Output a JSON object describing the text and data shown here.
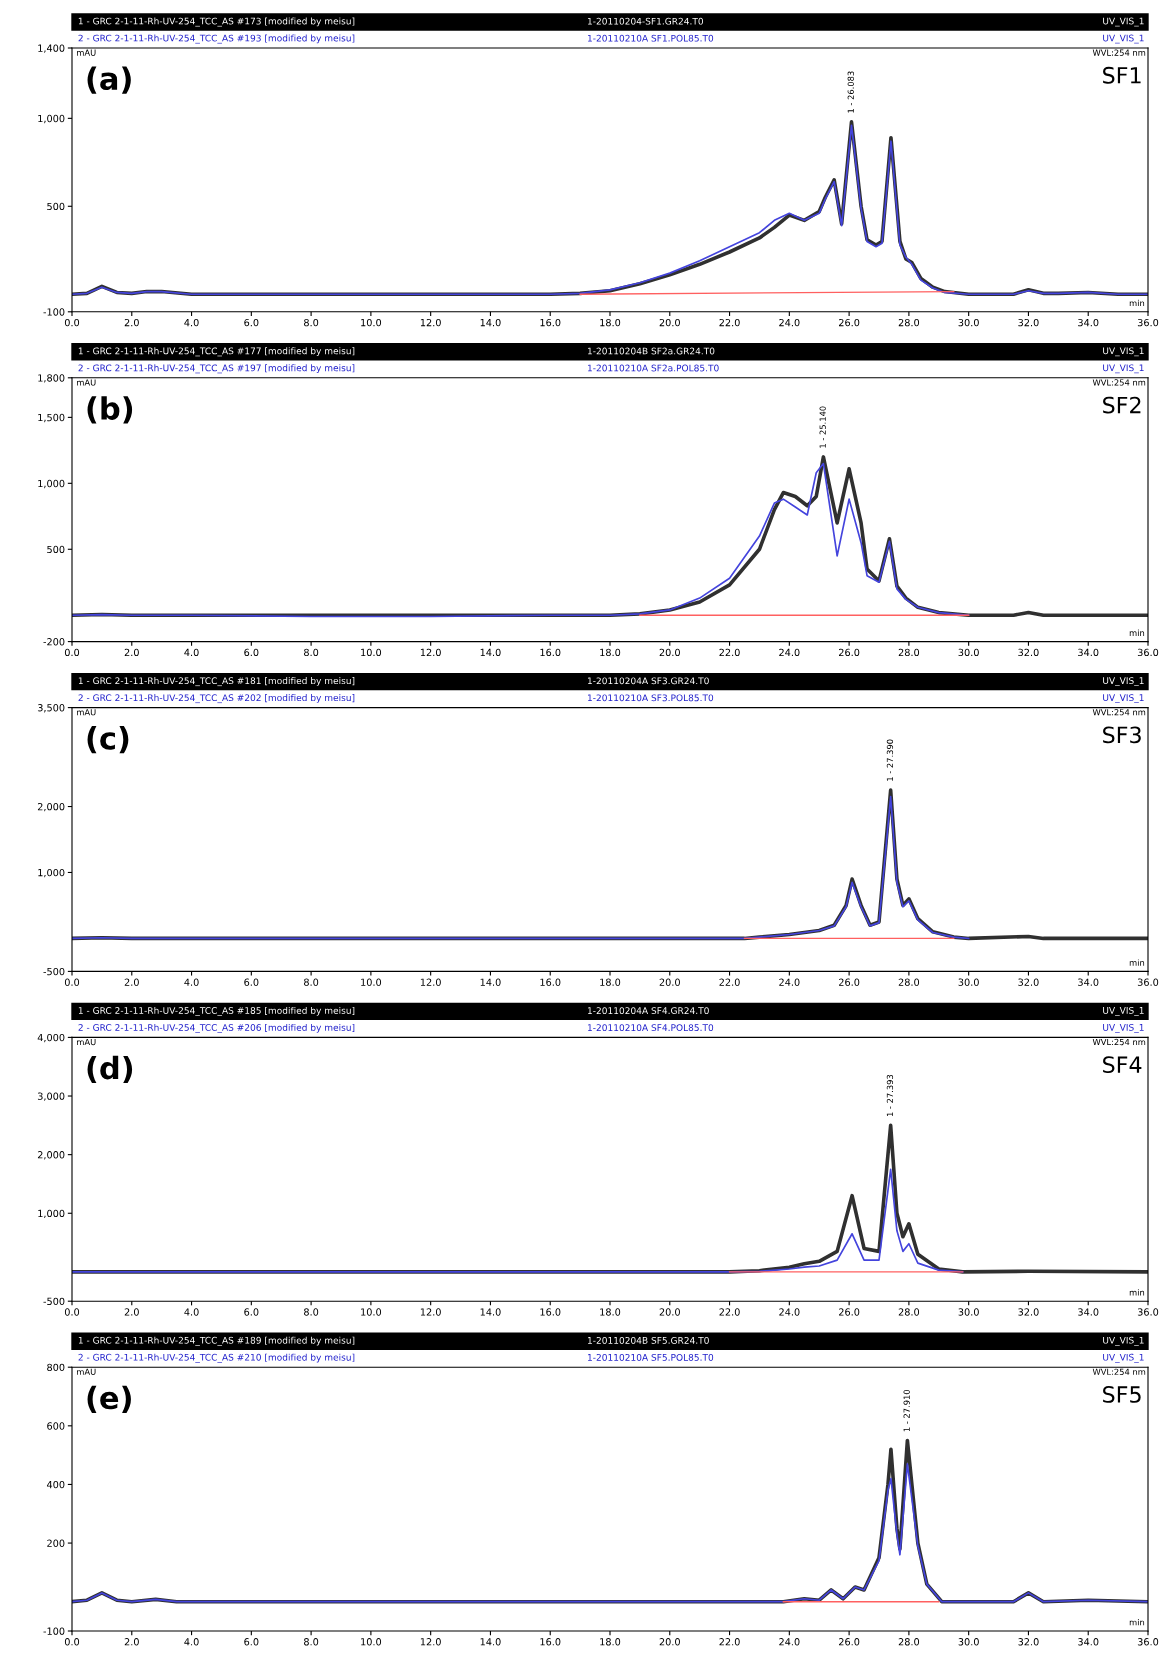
{
  "chart_data": [
    {
      "type": "line",
      "title": "(a)",
      "xlabel": "min",
      "ylabel": "mAU",
      "xlim": [
        0,
        36
      ],
      "ylim": [
        -100,
        1400
      ],
      "xticks": [
        {
          "value": 0,
          "label": "0.0"
        },
        {
          "value": 2,
          "label": "2.0"
        },
        {
          "value": 4,
          "label": "4.0"
        },
        {
          "value": 6,
          "label": "6.0"
        },
        {
          "value": 8,
          "label": "8.0"
        },
        {
          "value": 10,
          "label": "10.0"
        },
        {
          "value": 12,
          "label": "12.0"
        },
        {
          "value": 14,
          "label": "14.0"
        },
        {
          "value": 16,
          "label": "16.0"
        },
        {
          "value": 18,
          "label": "18.0"
        },
        {
          "value": 20,
          "label": "20.0"
        },
        {
          "value": 22,
          "label": "22.0"
        },
        {
          "value": 24,
          "label": "24.0"
        },
        {
          "value": 26,
          "label": "26.0"
        },
        {
          "value": 28,
          "label": "28.0"
        },
        {
          "value": 30,
          "label": "30.0"
        },
        {
          "value": 32,
          "label": "32.0"
        },
        {
          "value": 34,
          "label": "34.0"
        },
        {
          "value": 36,
          "label": "36.0"
        }
      ],
      "yticks": [
        -100,
        500,
        {
          "value": 1000,
          "label": "1,000"
        },
        {
          "value": 1400,
          "label": "1,400"
        }
      ],
      "annotations": [
        "1 - GRC 2-1-11-Rh-UV-254_TCC_AS #173 [modified by meisu]",
        "1-20110204-SF1.GR24.T0",
        "UV_VIS_1",
        "2 - GRC 2-1-11-Rh-UV-254_TCC_AS #193 [modified by meisu]",
        "1-20110210A SF1.POL85.T0",
        "UV_VIS_1",
        "SF1",
        "WVL:254 nm",
        {
          "text": "1 - 26.083",
          "x": 26.08,
          "y": 980
        }
      ],
      "series": [
        {
          "color": "#303030",
          "x": [
            0,
            0.5,
            1,
            1.5,
            2,
            2.5,
            3,
            4,
            8,
            12,
            16,
            17,
            18,
            19,
            20,
            21,
            22,
            23,
            23.5,
            24,
            24.5,
            25,
            25.2,
            25.5,
            25.75,
            26.08,
            26.4,
            26.6,
            26.9,
            27.1,
            27.4,
            27.7,
            27.9,
            28.1,
            28.4,
            28.8,
            29.2,
            30,
            31.5,
            32,
            32.5,
            33,
            34,
            35,
            36
          ],
          "values": [
            0,
            5,
            45,
            10,
            5,
            15,
            15,
            0,
            0,
            0,
            0,
            5,
            20,
            60,
            110,
            170,
            240,
            320,
            380,
            450,
            420,
            470,
            550,
            650,
            400,
            980,
            500,
            310,
            280,
            300,
            890,
            300,
            200,
            180,
            90,
            40,
            15,
            0,
            0,
            25,
            5,
            5,
            10,
            0,
            0
          ]
        },
        {
          "color": "#4444dd",
          "x": [
            0,
            0.5,
            1,
            1.5,
            2,
            2.5,
            3,
            4,
            8,
            12,
            16,
            17,
            18,
            19,
            20,
            21,
            22,
            23,
            23.5,
            24,
            24.5,
            25,
            25.2,
            25.5,
            25.75,
            26.08,
            26.4,
            26.6,
            26.9,
            27.1,
            27.4,
            27.7,
            27.9,
            28.1,
            28.4,
            28.8,
            29.2,
            30,
            31.5,
            32,
            32.5,
            33,
            34,
            35,
            36
          ],
          "values": [
            0,
            5,
            40,
            10,
            5,
            15,
            15,
            0,
            0,
            0,
            0,
            5,
            25,
            65,
            120,
            190,
            270,
            350,
            420,
            460,
            420,
            460,
            540,
            640,
            390,
            960,
            490,
            300,
            270,
            290,
            870,
            280,
            210,
            170,
            80,
            35,
            10,
            0,
            0,
            20,
            5,
            5,
            10,
            0,
            0
          ]
        },
        {
          "color": "#ff6060",
          "x": [
            17,
            29.5
          ],
          "values": [
            0,
            15
          ]
        }
      ]
    },
    {
      "type": "line",
      "title": "(b)",
      "xlabel": "min",
      "ylabel": "mAU",
      "xlim": [
        0,
        36
      ],
      "ylim": [
        -200,
        1800
      ],
      "xticks": [
        {
          "value": 0,
          "label": "0.0"
        },
        {
          "value": 2,
          "label": "2.0"
        },
        {
          "value": 4,
          "label": "4.0"
        },
        {
          "value": 6,
          "label": "6.0"
        },
        {
          "value": 8,
          "label": "8.0"
        },
        {
          "value": 10,
          "label": "10.0"
        },
        {
          "value": 12,
          "label": "12.0"
        },
        {
          "value": 14,
          "label": "14.0"
        },
        {
          "value": 16,
          "label": "16.0"
        },
        {
          "value": 18,
          "label": "18.0"
        },
        {
          "value": 20,
          "label": "20.0"
        },
        {
          "value": 22,
          "label": "22.0"
        },
        {
          "value": 24,
          "label": "24.0"
        },
        {
          "value": 26,
          "label": "26.0"
        },
        {
          "value": 28,
          "label": "28.0"
        },
        {
          "value": 30,
          "label": "30.0"
        },
        {
          "value": 32,
          "label": "32.0"
        },
        {
          "value": 34,
          "label": "34.0"
        },
        {
          "value": 36,
          "label": "36.0"
        }
      ],
      "yticks": [
        -200,
        500,
        {
          "value": 1000,
          "label": "1,000"
        },
        {
          "value": 1500,
          "label": "1,500"
        },
        {
          "value": 1800,
          "label": "1,800"
        }
      ],
      "annotations": [
        "1 - GRC 2-1-11-Rh-UV-254_TCC_AS #177 [modified by meisu]",
        "1-20110204B SF2a.GR24.T0",
        "UV_VIS_1",
        "2 - GRC 2-1-11-Rh-UV-254_TCC_AS #197 [modified by meisu]",
        "1-20110210A SF2a.POL85.T0",
        "UV_VIS_1",
        "SF2",
        "WVL:254 nm",
        {
          "text": "1 - 25.140",
          "x": 25.14,
          "y": 1200
        }
      ],
      "series": [
        {
          "color": "#303030",
          "x": [
            0,
            1,
            2,
            4,
            8,
            12,
            16,
            18,
            19,
            20,
            21,
            22,
            23,
            23.5,
            23.8,
            24.2,
            24.6,
            24.9,
            25.14,
            25.6,
            26.0,
            26.4,
            26.6,
            27,
            27.35,
            27.6,
            27.9,
            28.3,
            29,
            30,
            31.5,
            32,
            32.5,
            36
          ],
          "values": [
            0,
            5,
            0,
            0,
            0,
            0,
            0,
            0,
            10,
            40,
            100,
            230,
            500,
            800,
            930,
            900,
            830,
            900,
            1200,
            700,
            1110,
            700,
            350,
            260,
            580,
            220,
            130,
            60,
            20,
            0,
            0,
            20,
            0,
            0
          ]
        },
        {
          "color": "#4444dd",
          "x": [
            0,
            1,
            2,
            4,
            8,
            12,
            16,
            18,
            19,
            20,
            21,
            22,
            23,
            23.5,
            23.8,
            24.2,
            24.6,
            24.9,
            25.14,
            25.6,
            26.0,
            26.4,
            26.6,
            27,
            27.35,
            27.6,
            27.9,
            28.3,
            29,
            30
          ],
          "values": [
            0,
            5,
            0,
            0,
            -10,
            -10,
            0,
            0,
            10,
            40,
            130,
            280,
            600,
            850,
            880,
            820,
            760,
            1080,
            1150,
            450,
            880,
            550,
            300,
            250,
            560,
            200,
            120,
            60,
            20,
            0
          ]
        },
        {
          "color": "#ff6060",
          "x": [
            19,
            30
          ],
          "values": [
            0,
            0
          ]
        }
      ]
    },
    {
      "type": "line",
      "title": "(c)",
      "xlabel": "min",
      "ylabel": "mAU",
      "xlim": [
        0,
        36
      ],
      "ylim": [
        -500,
        3500
      ],
      "xticks": [
        {
          "value": 0,
          "label": "0.0"
        },
        {
          "value": 2,
          "label": "2.0"
        },
        {
          "value": 4,
          "label": "4.0"
        },
        {
          "value": 6,
          "label": "6.0"
        },
        {
          "value": 8,
          "label": "8.0"
        },
        {
          "value": 10,
          "label": "10.0"
        },
        {
          "value": 12,
          "label": "12.0"
        },
        {
          "value": 14,
          "label": "14.0"
        },
        {
          "value": 16,
          "label": "16.0"
        },
        {
          "value": 18,
          "label": "18.0"
        },
        {
          "value": 20,
          "label": "20.0"
        },
        {
          "value": 22,
          "label": "22.0"
        },
        {
          "value": 24,
          "label": "24.0"
        },
        {
          "value": 26,
          "label": "26.0"
        },
        {
          "value": 28,
          "label": "28.0"
        },
        {
          "value": 30,
          "label": "30.0"
        },
        {
          "value": 32,
          "label": "32.0"
        },
        {
          "value": 34,
          "label": "34.0"
        },
        {
          "value": 36,
          "label": "36.0"
        }
      ],
      "yticks": [
        -500,
        {
          "value": 1000,
          "label": "1,000"
        },
        {
          "value": 2000,
          "label": "2,000"
        },
        {
          "value": 3500,
          "label": "3,500"
        }
      ],
      "annotations": [
        "1 - GRC 2-1-11-Rh-UV-254_TCC_AS #181 [modified by meisu]",
        "1-20110204A SF3.GR24.T0",
        "UV_VIS_1",
        "2 - GRC 2-1-11-Rh-UV-254_TCC_AS #202 [modified by meisu]",
        "1-20110210A SF3.POL85.T0",
        "UV_VIS_1",
        "SF3",
        "WVL:254 nm",
        {
          "text": "1 - 27.390",
          "x": 27.39,
          "y": 2250
        }
      ],
      "series": [
        {
          "color": "#303030",
          "x": [
            0,
            1,
            2,
            8,
            16,
            22.5,
            23,
            24,
            25,
            25.5,
            25.9,
            26.1,
            26.4,
            26.7,
            27.0,
            27.39,
            27.6,
            27.8,
            28.0,
            28.3,
            28.8,
            29.5,
            30,
            32,
            32.5,
            36
          ],
          "values": [
            0,
            10,
            0,
            0,
            0,
            0,
            20,
            60,
            120,
            200,
            500,
            900,
            500,
            200,
            250,
            2250,
            900,
            500,
            600,
            300,
            100,
            20,
            0,
            30,
            0,
            0
          ]
        },
        {
          "color": "#4444dd",
          "x": [
            0,
            1,
            2,
            8,
            16,
            22.5,
            23,
            24,
            25,
            25.5,
            25.9,
            26.1,
            26.4,
            26.7,
            27.0,
            27.39,
            27.6,
            27.8,
            28.0,
            28.3,
            28.8,
            29.5,
            30
          ],
          "values": [
            0,
            10,
            0,
            0,
            0,
            0,
            20,
            60,
            120,
            190,
            480,
            850,
            480,
            190,
            240,
            2150,
            850,
            480,
            570,
            280,
            90,
            20,
            0
          ]
        },
        {
          "color": "#ff6060",
          "x": [
            22.5,
            29.5
          ],
          "values": [
            0,
            0
          ]
        }
      ]
    },
    {
      "type": "line",
      "title": "(d)",
      "xlabel": "min",
      "ylabel": "mAU",
      "xlim": [
        0,
        36
      ],
      "ylim": [
        -500,
        4000
      ],
      "xticks": [
        {
          "value": 0,
          "label": "0.0"
        },
        {
          "value": 2,
          "label": "2.0"
        },
        {
          "value": 4,
          "label": "4.0"
        },
        {
          "value": 6,
          "label": "6.0"
        },
        {
          "value": 8,
          "label": "8.0"
        },
        {
          "value": 10,
          "label": "10.0"
        },
        {
          "value": 12,
          "label": "12.0"
        },
        {
          "value": 14,
          "label": "14.0"
        },
        {
          "value": 16,
          "label": "16.0"
        },
        {
          "value": 18,
          "label": "18.0"
        },
        {
          "value": 20,
          "label": "20.0"
        },
        {
          "value": 22,
          "label": "22.0"
        },
        {
          "value": 24,
          "label": "24.0"
        },
        {
          "value": 26,
          "label": "26.0"
        },
        {
          "value": 28,
          "label": "28.0"
        },
        {
          "value": 30,
          "label": "30.0"
        },
        {
          "value": 32,
          "label": "32.0"
        },
        {
          "value": 34,
          "label": "34.0"
        },
        {
          "value": 36,
          "label": "36.0"
        }
      ],
      "yticks": [
        -500,
        {
          "value": 1000,
          "label": "1,000"
        },
        {
          "value": 2000,
          "label": "2,000"
        },
        {
          "value": 3000,
          "label": "3,000"
        },
        {
          "value": 4000,
          "label": "4,000"
        }
      ],
      "annotations": [
        "1 - GRC 2-1-11-Rh-UV-254_TCC_AS #185 [modified by meisu]",
        "1-20110204A SF4.GR24.T0",
        "UV_VIS_1",
        "2 - GRC 2-1-11-Rh-UV-254_TCC_AS #206 [modified by meisu]",
        "1-20110210A SF4.POL85.T0",
        "UV_VIS_1",
        "SF4",
        "WVL:254 nm",
        {
          "text": "1 - 27.393",
          "x": 27.39,
          "y": 2500
        }
      ],
      "series": [
        {
          "color": "#303030",
          "x": [
            0,
            2,
            8,
            16,
            22,
            23,
            24,
            24.5,
            25,
            25.6,
            26.1,
            26.5,
            27,
            27.39,
            27.6,
            27.8,
            28,
            28.3,
            29,
            29.8,
            32,
            36
          ],
          "values": [
            0,
            0,
            0,
            0,
            0,
            20,
            80,
            140,
            180,
            350,
            1300,
            400,
            350,
            2500,
            1000,
            600,
            820,
            300,
            50,
            0,
            10,
            0
          ]
        },
        {
          "color": "#4444dd",
          "x": [
            0,
            2,
            8,
            16,
            22,
            23,
            24,
            24.5,
            25,
            25.6,
            26.1,
            26.5,
            27,
            27.39,
            27.6,
            27.8,
            28,
            28.3,
            29,
            29.8
          ],
          "values": [
            0,
            0,
            0,
            0,
            0,
            10,
            50,
            80,
            100,
            200,
            650,
            200,
            200,
            1750,
            700,
            350,
            480,
            150,
            30,
            0
          ]
        },
        {
          "color": "#ff6060",
          "x": [
            22,
            29.8
          ],
          "values": [
            0,
            0
          ]
        }
      ]
    },
    {
      "type": "line",
      "title": "(e)",
      "xlabel": "min",
      "ylabel": "mAU",
      "xlim": [
        0,
        36
      ],
      "ylim": [
        -100,
        800
      ],
      "xticks": [
        {
          "value": 0,
          "label": "0.0"
        },
        {
          "value": 2,
          "label": "2.0"
        },
        {
          "value": 4,
          "label": "4.0"
        },
        {
          "value": 6,
          "label": "6.0"
        },
        {
          "value": 8,
          "label": "8.0"
        },
        {
          "value": 10,
          "label": "10.0"
        },
        {
          "value": 12,
          "label": "12.0"
        },
        {
          "value": 14,
          "label": "14.0"
        },
        {
          "value": 16,
          "label": "16.0"
        },
        {
          "value": 18,
          "label": "18.0"
        },
        {
          "value": 20,
          "label": "20.0"
        },
        {
          "value": 22,
          "label": "22.0"
        },
        {
          "value": 24,
          "label": "24.0"
        },
        {
          "value": 26,
          "label": "26.0"
        },
        {
          "value": 28,
          "label": "28.0"
        },
        {
          "value": 30,
          "label": "30.0"
        },
        {
          "value": 32,
          "label": "32.0"
        },
        {
          "value": 34,
          "label": "34.0"
        },
        {
          "value": 36,
          "label": "36.0"
        }
      ],
      "yticks": [
        -100,
        200,
        400,
        600,
        800
      ],
      "annotations": [
        "1 - GRC 2-1-11-Rh-UV-254_TCC_AS #189 [modified by meisu]",
        "1-20110204B SF5.GR24.T0",
        "UV_VIS_1",
        "2 - GRC 2-1-11-Rh-UV-254_TCC_AS #210 [modified by meisu]",
        "1-20110210A SF5.POL85.T0",
        "UV_VIS_1",
        "SF5",
        "WVL:254 nm",
        {
          "text": "1 - 27.910",
          "x": 27.95,
          "y": 550
        }
      ],
      "series": [
        {
          "color": "#303030",
          "x": [
            0,
            0.5,
            1,
            1.5,
            2,
            2.8,
            3.5,
            8,
            16,
            23.8,
            24.5,
            25,
            25.4,
            25.8,
            26.2,
            26.5,
            27,
            27.3,
            27.4,
            27.6,
            27.7,
            27.95,
            28.3,
            28.6,
            29.1,
            30.5,
            31.5,
            32,
            32.5,
            34,
            36
          ],
          "values": [
            0,
            5,
            30,
            5,
            0,
            8,
            0,
            0,
            0,
            0,
            10,
            5,
            40,
            10,
            50,
            40,
            150,
            400,
            520,
            250,
            180,
            550,
            200,
            60,
            0,
            0,
            0,
            30,
            0,
            5,
            0
          ]
        },
        {
          "color": "#4444dd",
          "x": [
            0,
            0.5,
            1,
            1.5,
            2,
            2.8,
            3.5,
            8,
            16,
            23.8,
            24.5,
            25,
            25.4,
            25.8,
            26.2,
            26.5,
            27,
            27.3,
            27.4,
            27.6,
            27.7,
            27.95,
            28.3,
            28.6,
            29.1,
            30.5,
            31.5,
            32,
            32.5,
            34,
            36
          ],
          "values": [
            0,
            5,
            30,
            5,
            0,
            8,
            0,
            0,
            0,
            0,
            10,
            5,
            40,
            10,
            50,
            40,
            140,
            380,
            420,
            230,
            160,
            470,
            190,
            60,
            0,
            0,
            0,
            30,
            0,
            5,
            0
          ]
        },
        {
          "color": "#ff6060",
          "x": [
            23.8,
            29
          ],
          "values": [
            0,
            0
          ]
        }
      ]
    }
  ]
}
